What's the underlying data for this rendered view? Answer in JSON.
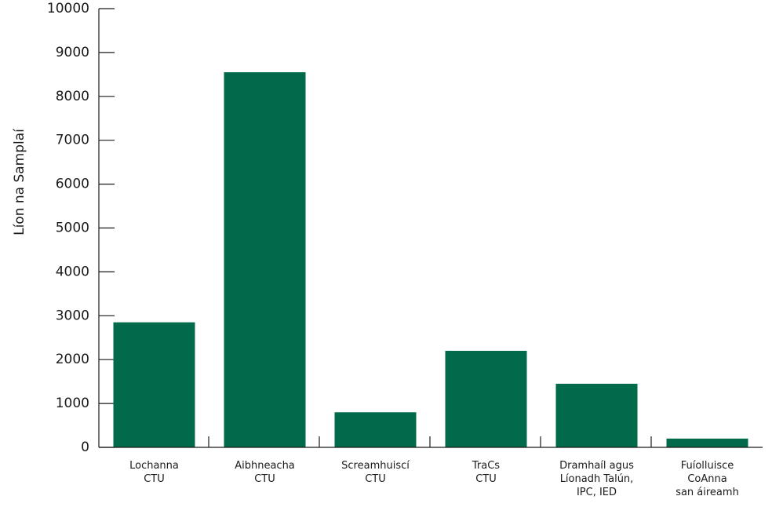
{
  "chart_data": {
    "type": "bar",
    "title": "",
    "xlabel": "",
    "ylabel": "Líon na Samplaí",
    "ylim": [
      0,
      10000
    ],
    "yticks": [
      0,
      1000,
      2000,
      3000,
      4000,
      5000,
      6000,
      7000,
      8000,
      9000,
      10000
    ],
    "grid": false,
    "bar_color": "#006a4a",
    "axis_color": "#1a1a1a",
    "categories": [
      [
        "Lochanna",
        "CTU"
      ],
      [
        "Aibhneacha",
        "CTU"
      ],
      [
        "Screamhuiscí",
        "CTU"
      ],
      [
        "TraCs",
        "CTU"
      ],
      [
        "Dramhaíl agus",
        "Líonadh Talún,",
        "IPC, IED"
      ],
      [
        "Fuíolluisce",
        "CoAnna",
        "san áireamh"
      ]
    ],
    "values": [
      2850,
      8550,
      800,
      2200,
      1450,
      200
    ]
  }
}
